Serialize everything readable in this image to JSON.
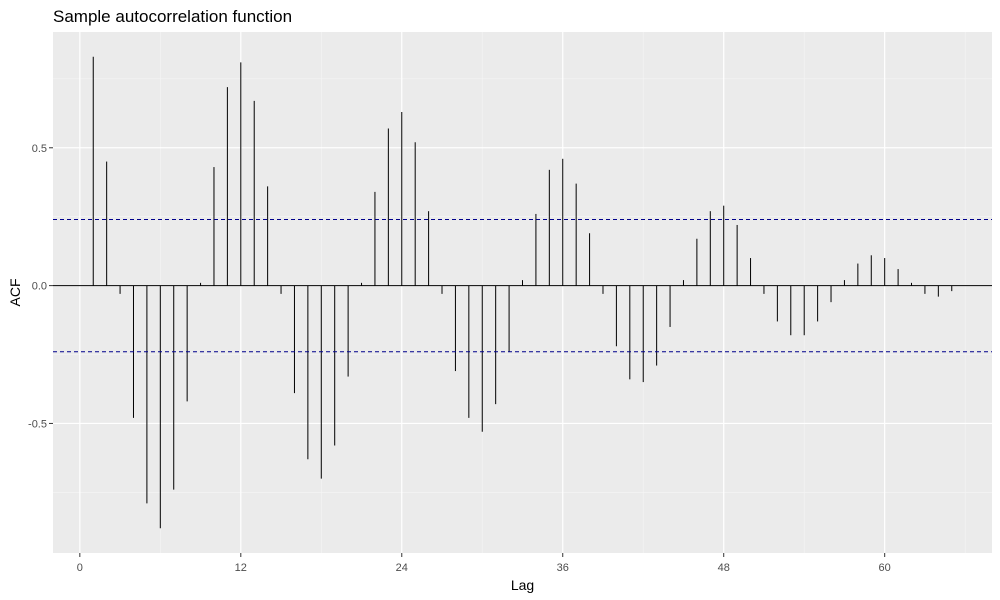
{
  "chart_data": {
    "type": "bar",
    "title": "Sample autocorrelation function",
    "xlabel": "Lag",
    "ylabel": "ACF",
    "xlim": [
      -2,
      68
    ],
    "ylim": [
      -0.97,
      0.92
    ],
    "x_ticks": [
      0,
      12,
      24,
      36,
      48,
      60
    ],
    "x_tick_labels": [
      "0",
      "12",
      "24",
      "36",
      "48",
      "60"
    ],
    "y_ticks": [
      -0.5,
      0.0,
      0.5
    ],
    "y_tick_labels": [
      "-0.5",
      "0.0",
      "0.5"
    ],
    "grid": true,
    "confidence_bound": 0.24,
    "lags": [
      1,
      2,
      3,
      4,
      5,
      6,
      7,
      8,
      9,
      10,
      11,
      12,
      13,
      14,
      15,
      16,
      17,
      18,
      19,
      20,
      21,
      22,
      23,
      24,
      25,
      26,
      27,
      28,
      29,
      30,
      31,
      32,
      33,
      34,
      35,
      36,
      37,
      38,
      39,
      40,
      41,
      42,
      43,
      44,
      45,
      46,
      47,
      48,
      49,
      50,
      51,
      52,
      53,
      54,
      55,
      56,
      57,
      58,
      59,
      60,
      61,
      62,
      63,
      64,
      65
    ],
    "values": [
      0.83,
      0.45,
      -0.03,
      -0.48,
      -0.79,
      -0.88,
      -0.74,
      -0.42,
      0.01,
      0.43,
      0.72,
      0.81,
      0.67,
      0.36,
      -0.03,
      -0.39,
      -0.63,
      -0.7,
      -0.58,
      -0.33,
      0.01,
      0.34,
      0.57,
      0.63,
      0.52,
      0.27,
      -0.03,
      -0.31,
      -0.48,
      -0.53,
      -0.43,
      -0.24,
      0.02,
      0.26,
      0.42,
      0.46,
      0.37,
      0.19,
      -0.03,
      -0.22,
      -0.34,
      -0.35,
      -0.29,
      -0.15,
      0.02,
      0.17,
      0.27,
      0.29,
      0.22,
      0.1,
      -0.03,
      -0.13,
      -0.18,
      -0.18,
      -0.13,
      -0.06,
      0.02,
      0.08,
      0.11,
      0.1,
      0.06,
      0.01,
      -0.03,
      -0.04,
      -0.02
    ]
  }
}
